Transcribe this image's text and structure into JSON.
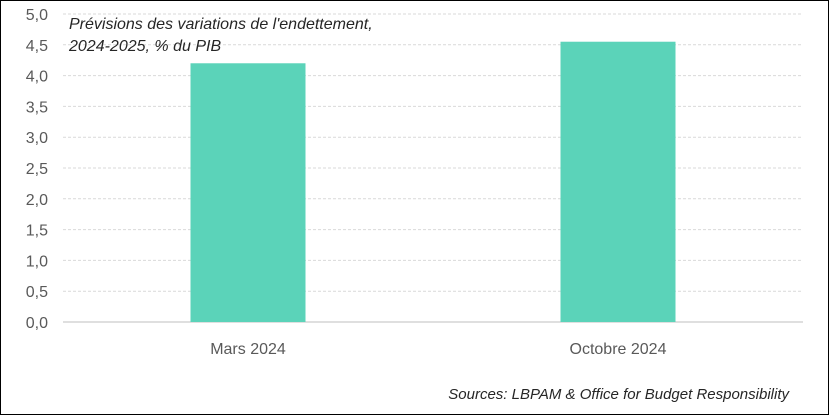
{
  "chart_data": {
    "type": "bar",
    "title_lines": [
      "Prévisions des variations de l'endettement,",
      "2024-2025, % du PIB"
    ],
    "categories": [
      "Mars 2024",
      "Octobre 2024"
    ],
    "values": [
      4.2,
      4.55
    ],
    "ylim": [
      0,
      5
    ],
    "yticks": [
      "0,0",
      "0,5",
      "1,0",
      "1,5",
      "2,0",
      "2,5",
      "3,0",
      "3,5",
      "4,0",
      "4,5",
      "5,0"
    ],
    "grid": true,
    "bar_color": "#5BD3B9",
    "gridline_color": "#D9D9D9",
    "source": "Sources: LBPAM & Office for Budget Responsibility"
  }
}
